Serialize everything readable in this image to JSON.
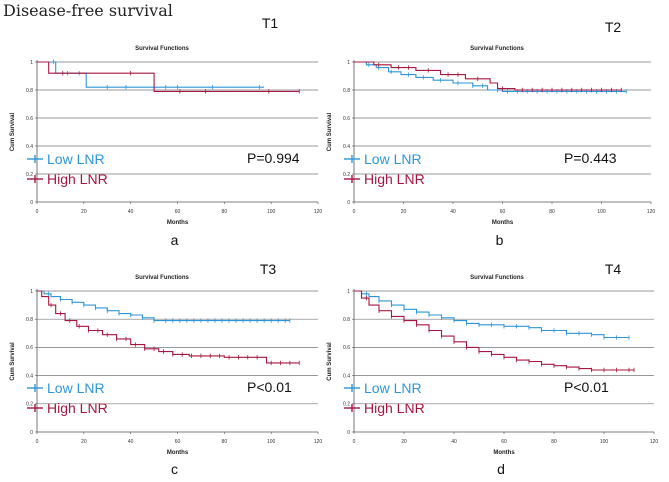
{
  "figure_title": "Disease-free survival",
  "colors": {
    "low": "#2e96d8",
    "high": "#a5173f",
    "grid": "#777777",
    "axis": "#555555"
  },
  "chart_data": [
    {
      "type": "line",
      "panel": "a",
      "tag": "T1",
      "title": "Survival Functions",
      "xlabel": "Months",
      "ylabel": "Cum Survival",
      "xlim": [
        0,
        120
      ],
      "ylim": [
        0,
        1
      ],
      "xticks": [
        0,
        20,
        40,
        60,
        80,
        100,
        120
      ],
      "yticks": [
        0,
        0.2,
        0.4,
        0.6,
        0.8,
        1.0
      ],
      "grid": true,
      "p_value": "P=0.994",
      "series": [
        {
          "name": "Low LNR",
          "color": "#2e96d8",
          "steps": [
            [
              0,
              1.0
            ],
            [
              8,
              0.92
            ],
            [
              21,
              0.82
            ],
            [
              50,
              0.82
            ],
            [
              97,
              0.82
            ]
          ],
          "censors": [
            7,
            13,
            18,
            30,
            38,
            55,
            60,
            75,
            95
          ]
        },
        {
          "name": "High LNR",
          "color": "#a5173f",
          "steps": [
            [
              0,
              1.0
            ],
            [
              5,
              0.92
            ],
            [
              50,
              0.79
            ],
            [
              112,
              0.79
            ]
          ],
          "censors": [
            11,
            40,
            61,
            72,
            99,
            112
          ]
        }
      ]
    },
    {
      "type": "line",
      "panel": "b",
      "tag": "T2",
      "title": "Survival Functions",
      "xlabel": "Months",
      "ylabel": "Cum Survival",
      "xlim": [
        0,
        120
      ],
      "ylim": [
        0,
        1
      ],
      "xticks": [
        0,
        20,
        40,
        60,
        80,
        100,
        120
      ],
      "yticks": [
        0,
        0.2,
        0.4,
        0.6,
        0.8,
        1.0
      ],
      "grid": true,
      "p_value": "P=0.443",
      "series": [
        {
          "name": "Low LNR",
          "color": "#2e96d8",
          "steps": [
            [
              0,
              1.0
            ],
            [
              5,
              0.98
            ],
            [
              9,
              0.96
            ],
            [
              14,
              0.93
            ],
            [
              19,
              0.91
            ],
            [
              25,
              0.89
            ],
            [
              32,
              0.87
            ],
            [
              40,
              0.85
            ],
            [
              48,
              0.83
            ],
            [
              54,
              0.8
            ],
            [
              60,
              0.79
            ],
            [
              110,
              0.79
            ]
          ],
          "censors": [
            6,
            10,
            15,
            22,
            28,
            35,
            42,
            48,
            52,
            58,
            62,
            66,
            70,
            74,
            78,
            82,
            86,
            90,
            94,
            98,
            102,
            106,
            110
          ]
        },
        {
          "name": "High LNR",
          "color": "#a5173f",
          "steps": [
            [
              0,
              1.0
            ],
            [
              8,
              0.98
            ],
            [
              15,
              0.96
            ],
            [
              25,
              0.94
            ],
            [
              35,
              0.91
            ],
            [
              45,
              0.88
            ],
            [
              55,
              0.85
            ],
            [
              58,
              0.81
            ],
            [
              65,
              0.8
            ],
            [
              108,
              0.8
            ]
          ],
          "censors": [
            10,
            18,
            22,
            30,
            38,
            42,
            50,
            60,
            68,
            72,
            76,
            80,
            84,
            88,
            92,
            96,
            100,
            104,
            108
          ]
        }
      ]
    },
    {
      "type": "line",
      "panel": "c",
      "tag": "T3",
      "title": "Survival Functions",
      "xlabel": "Months",
      "ylabel": "Cum Survival",
      "xlim": [
        0,
        120
      ],
      "ylim": [
        0,
        1
      ],
      "xticks": [
        0,
        20,
        40,
        60,
        80,
        100,
        120
      ],
      "yticks": [
        0,
        0.2,
        0.4,
        0.6,
        0.8,
        1.0
      ],
      "grid": true,
      "p_value": "P<0.01",
      "series": [
        {
          "name": "Low LNR",
          "color": "#2e96d8",
          "steps": [
            [
              0,
              1.0
            ],
            [
              3,
              0.98
            ],
            [
              6,
              0.96
            ],
            [
              10,
              0.94
            ],
            [
              15,
              0.92
            ],
            [
              20,
              0.9
            ],
            [
              25,
              0.88
            ],
            [
              30,
              0.86
            ],
            [
              35,
              0.84
            ],
            [
              40,
              0.83
            ],
            [
              45,
              0.81
            ],
            [
              50,
              0.79
            ],
            [
              108,
              0.79
            ]
          ],
          "censors": [
            5,
            10,
            15,
            20,
            25,
            30,
            35,
            40,
            45,
            50,
            55,
            58,
            61,
            64,
            67,
            70,
            73,
            76,
            79,
            82,
            85,
            88,
            91,
            94,
            97,
            100,
            103,
            106,
            108
          ]
        },
        {
          "name": "High LNR",
          "color": "#a5173f",
          "steps": [
            [
              0,
              1.0
            ],
            [
              2,
              0.96
            ],
            [
              5,
              0.9
            ],
            [
              8,
              0.84
            ],
            [
              12,
              0.79
            ],
            [
              17,
              0.75
            ],
            [
              22,
              0.72
            ],
            [
              28,
              0.69
            ],
            [
              34,
              0.66
            ],
            [
              40,
              0.62
            ],
            [
              46,
              0.59
            ],
            [
              52,
              0.57
            ],
            [
              58,
              0.55
            ],
            [
              65,
              0.54
            ],
            [
              75,
              0.54
            ],
            [
              80,
              0.53
            ],
            [
              97,
              0.53
            ],
            [
              98,
              0.49
            ],
            [
              112,
              0.49
            ]
          ],
          "censors": [
            6,
            10,
            14,
            18,
            22,
            26,
            30,
            34,
            38,
            42,
            46,
            50,
            54,
            58,
            62,
            66,
            70,
            74,
            78,
            82,
            86,
            90,
            94,
            100,
            104,
            108,
            112
          ]
        }
      ]
    },
    {
      "type": "line",
      "panel": "d",
      "tag": "T4",
      "title": "Survival Functions",
      "xlabel": "Months",
      "ylabel": "Cum Survival",
      "xlim": [
        0,
        120
      ],
      "ylim": [
        0,
        1
      ],
      "xticks": [
        0,
        20,
        40,
        60,
        80,
        100,
        120
      ],
      "yticks": [
        0,
        0.2,
        0.4,
        0.6,
        0.8,
        1.0
      ],
      "grid": true,
      "p_value": "P<0.01",
      "series": [
        {
          "name": "Low LNR",
          "color": "#2e96d8",
          "steps": [
            [
              0,
              1.0
            ],
            [
              3,
              0.98
            ],
            [
              6,
              0.96
            ],
            [
              10,
              0.93
            ],
            [
              15,
              0.9
            ],
            [
              20,
              0.87
            ],
            [
              25,
              0.85
            ],
            [
              30,
              0.83
            ],
            [
              35,
              0.81
            ],
            [
              40,
              0.79
            ],
            [
              45,
              0.77
            ],
            [
              50,
              0.76
            ],
            [
              60,
              0.75
            ],
            [
              70,
              0.74
            ],
            [
              75,
              0.72
            ],
            [
              85,
              0.7
            ],
            [
              95,
              0.69
            ],
            [
              100,
              0.67
            ],
            [
              110,
              0.67
            ]
          ],
          "censors": [
            5,
            10,
            15,
            20,
            25,
            30,
            35,
            40,
            45,
            50,
            55,
            60,
            65,
            70,
            75,
            80,
            85,
            90,
            95,
            100,
            105,
            110
          ]
        },
        {
          "name": "High LNR",
          "color": "#a5173f",
          "steps": [
            [
              0,
              1.0
            ],
            [
              3,
              0.95
            ],
            [
              6,
              0.9
            ],
            [
              10,
              0.86
            ],
            [
              15,
              0.82
            ],
            [
              20,
              0.79
            ],
            [
              25,
              0.76
            ],
            [
              30,
              0.72
            ],
            [
              35,
              0.68
            ],
            [
              40,
              0.64
            ],
            [
              45,
              0.6
            ],
            [
              50,
              0.57
            ],
            [
              55,
              0.55
            ],
            [
              60,
              0.53
            ],
            [
              65,
              0.51
            ],
            [
              70,
              0.5
            ],
            [
              75,
              0.48
            ],
            [
              80,
              0.47
            ],
            [
              85,
              0.46
            ],
            [
              90,
              0.45
            ],
            [
              95,
              0.44
            ],
            [
              112,
              0.44
            ]
          ],
          "censors": [
            5,
            10,
            15,
            20,
            25,
            30,
            35,
            40,
            45,
            50,
            55,
            60,
            65,
            70,
            75,
            80,
            85,
            90,
            95,
            100,
            105,
            110,
            112
          ]
        }
      ]
    }
  ]
}
